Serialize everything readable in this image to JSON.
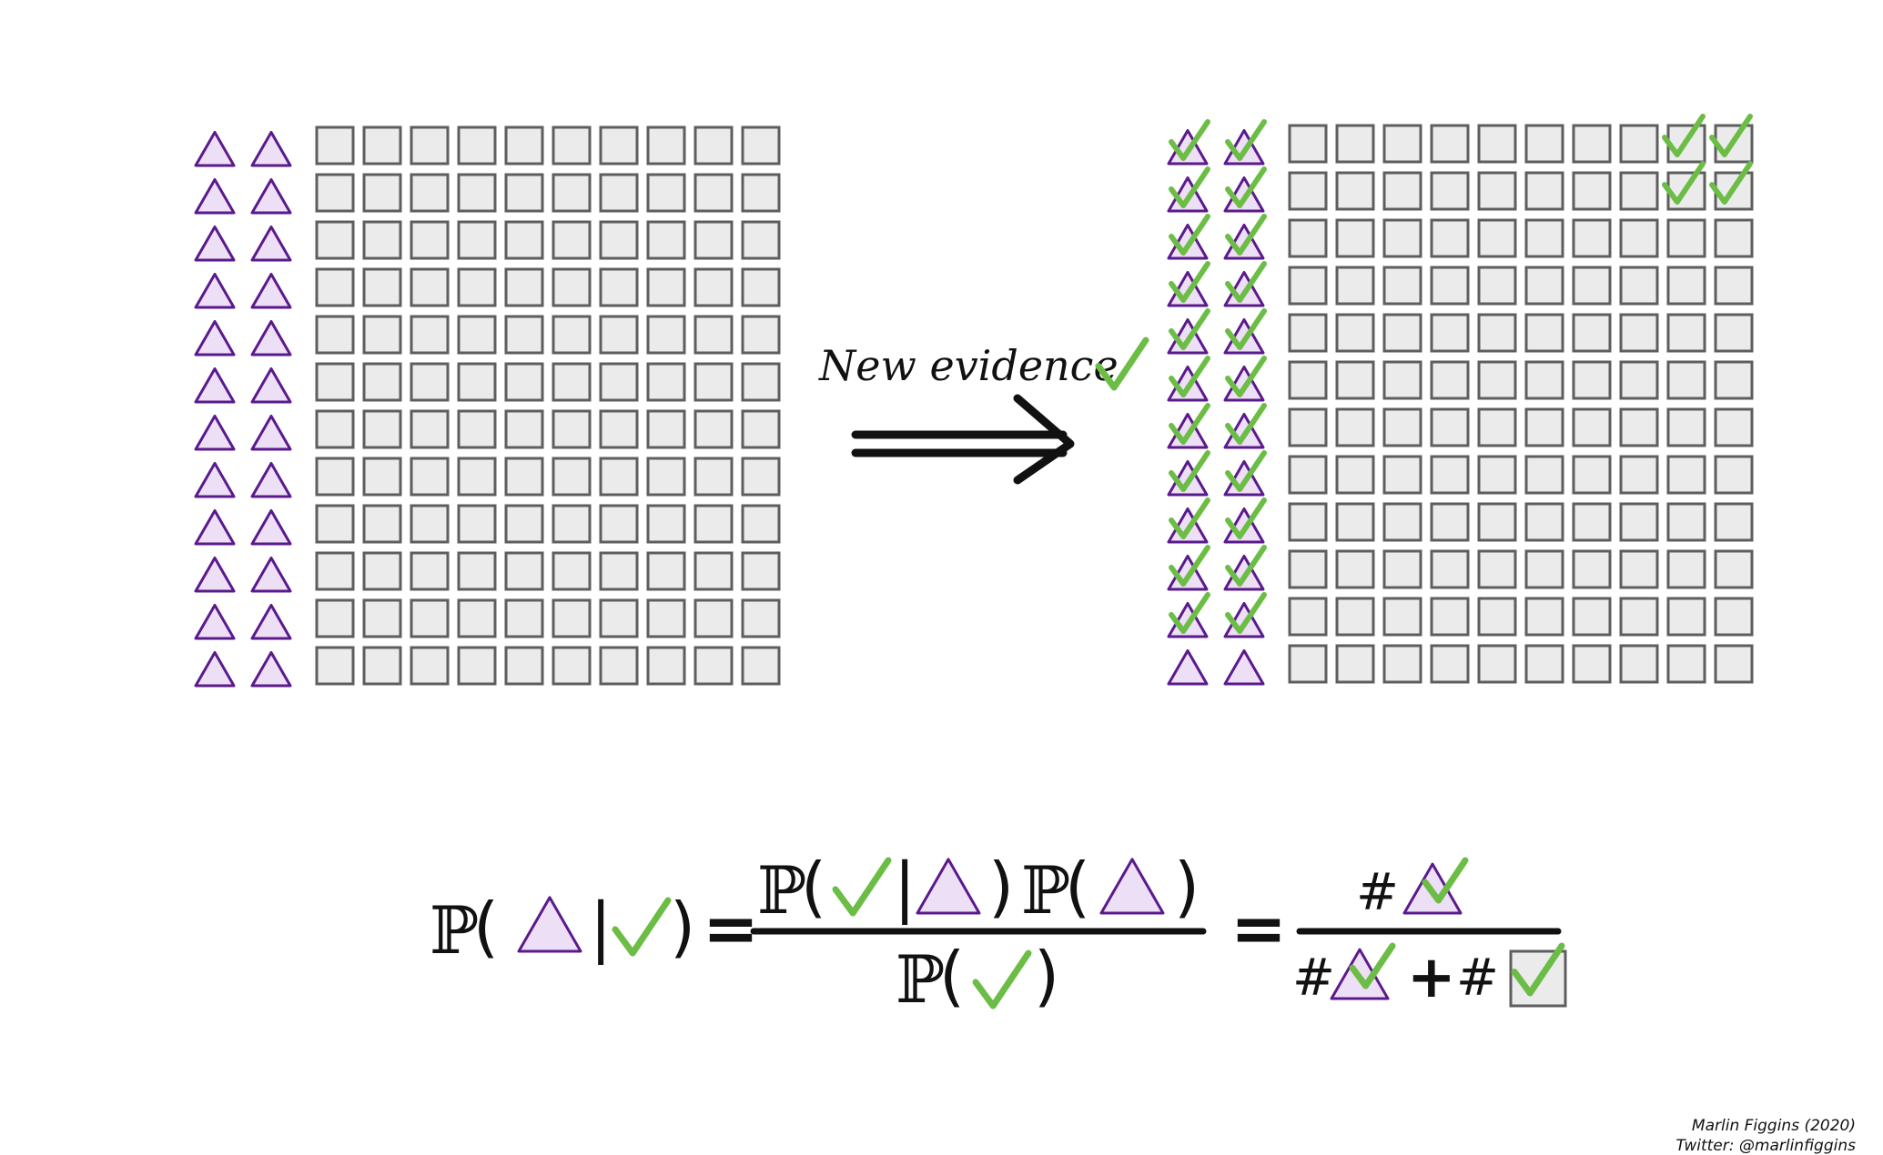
{
  "left_grid": {
    "rows": 12,
    "triangle_columns": 2,
    "square_columns": 10
  },
  "right_grid": {
    "rows": 12,
    "triangle_columns": 2,
    "square_columns": 10,
    "checked_triangle_rows": 11,
    "checked_square_cells": [
      [
        0,
        8
      ],
      [
        0,
        9
      ],
      [
        1,
        8
      ],
      [
        1,
        9
      ]
    ]
  },
  "arrow": {
    "label": "New evidence"
  },
  "formula": {
    "P": "ℙ",
    "open_paren": "(",
    "close_paren": ")",
    "bar": "|",
    "equals": "=",
    "hash": "#",
    "plus": "+"
  },
  "credit": {
    "author": "Marlin Figgins (2020)",
    "twitter": "Twitter: @marlinfiggins"
  },
  "colors": {
    "triangle_stroke": "#5b1a8c",
    "triangle_fill": "#eddff5",
    "square_stroke": "#5e5e5e",
    "square_fill": "#ebebeb",
    "check": "#6cbd45",
    "ink": "#111111"
  }
}
